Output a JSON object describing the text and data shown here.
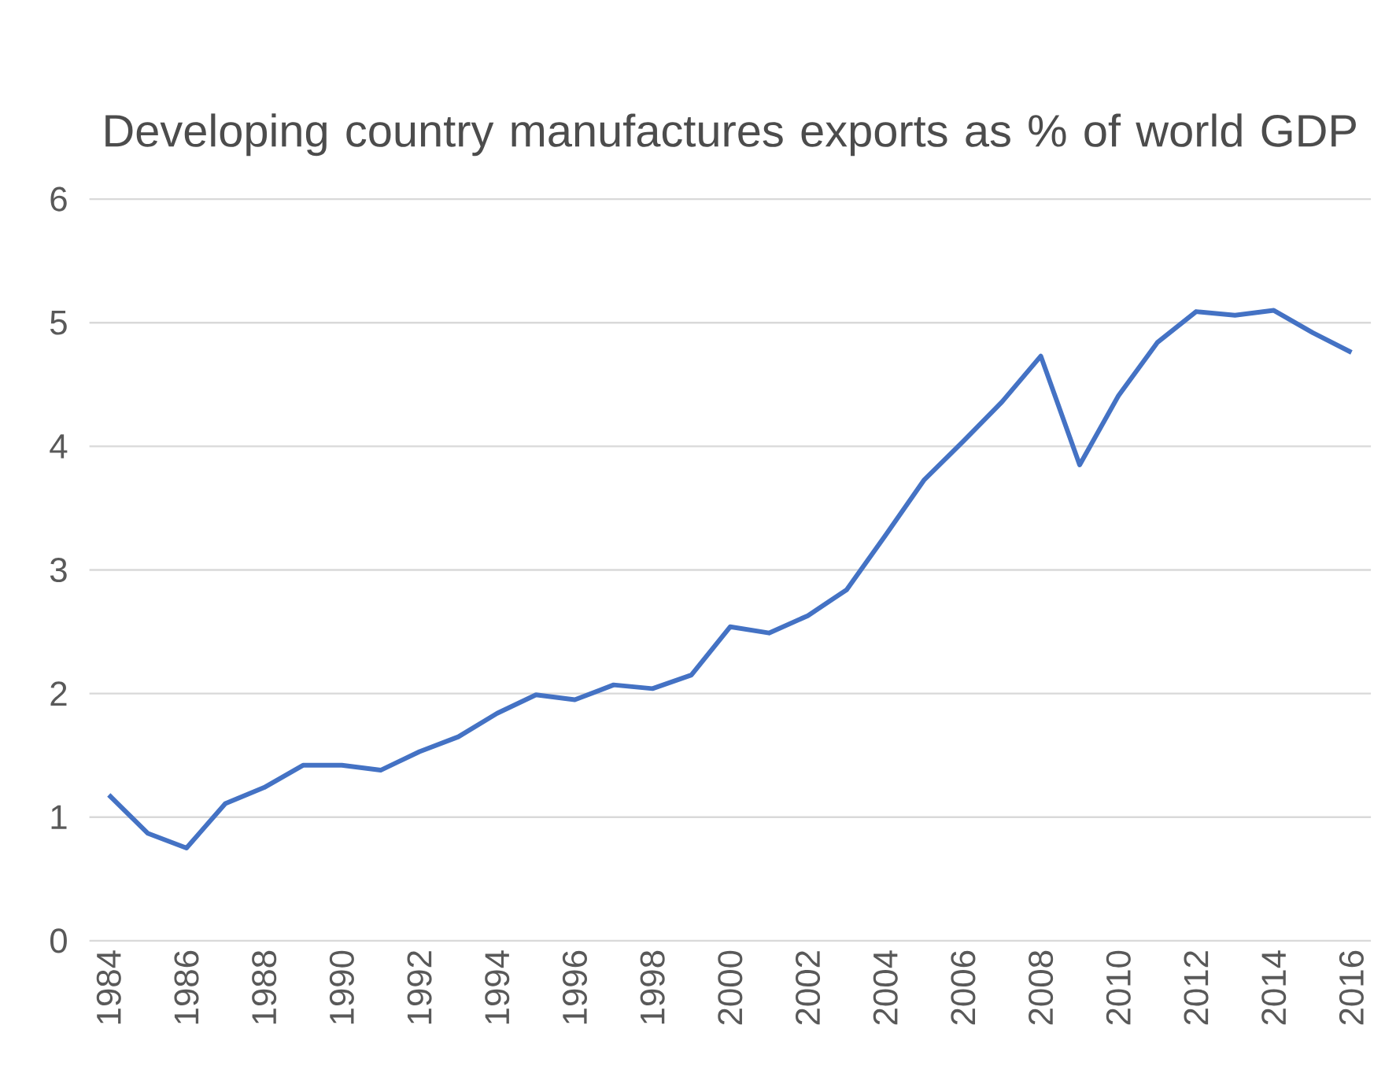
{
  "chart_data": {
    "type": "line",
    "title": "Developing country manufactures exports as % of world GDP",
    "x": [
      1984,
      1985,
      1986,
      1987,
      1988,
      1989,
      1990,
      1991,
      1992,
      1993,
      1994,
      1995,
      1996,
      1997,
      1998,
      1999,
      2000,
      2001,
      2002,
      2003,
      2004,
      2005,
      2006,
      2007,
      2008,
      2009,
      2010,
      2011,
      2012,
      2013,
      2014,
      2015,
      2016
    ],
    "series": [
      {
        "color": "#4472c4",
        "values": [
          1.18,
          0.87,
          0.75,
          1.11,
          1.24,
          1.42,
          1.42,
          1.38,
          1.53,
          1.65,
          1.84,
          1.99,
          1.95,
          2.07,
          2.04,
          2.15,
          2.54,
          2.49,
          2.63,
          2.84,
          3.28,
          3.73,
          4.04,
          4.36,
          4.73,
          3.85,
          4.41,
          4.84,
          5.09,
          5.06,
          5.1,
          4.92,
          4.76
        ]
      }
    ],
    "xlim": [
      1983.5,
      2016.5
    ],
    "xticks": [
      1984,
      1986,
      1988,
      1990,
      1992,
      1994,
      1996,
      1998,
      2000,
      2002,
      2004,
      2006,
      2008,
      2010,
      2012,
      2014,
      2016
    ],
    "ylim": [
      0,
      6
    ],
    "yticks": [
      0,
      1,
      2,
      3,
      4,
      5,
      6
    ],
    "grid": "y",
    "marker": "none",
    "line_style": "solid"
  }
}
